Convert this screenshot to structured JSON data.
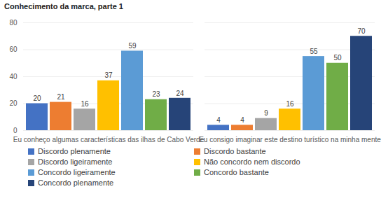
{
  "chart_data": {
    "type": "bar",
    "title": "Conhecimento da marca, parte 1",
    "categories": [
      "Eu conheço algumas características das ilhas de Cabo Verde",
      "Eu consigo imaginar este destino turístico na minha mente"
    ],
    "series": [
      {
        "name": "Discordo plenamente",
        "color": "#4472c4",
        "values": [
          20,
          4
        ]
      },
      {
        "name": "Discordo bastante",
        "color": "#ed7d31",
        "values": [
          21,
          4
        ]
      },
      {
        "name": "Discordo ligeiramente",
        "color": "#a5a5a5",
        "values": [
          16,
          9
        ]
      },
      {
        "name": "Não concordo nem discordo",
        "color": "#ffc000",
        "values": [
          37,
          16
        ]
      },
      {
        "name": "Concordo ligeiramente",
        "color": "#5b9bd5",
        "values": [
          59,
          55
        ]
      },
      {
        "name": "Concordo bastante",
        "color": "#70ad47",
        "values": [
          23,
          50
        ]
      },
      {
        "name": "Concordo plenamente",
        "color": "#264478",
        "values": [
          24,
          70
        ]
      }
    ],
    "ylim": [
      0,
      80
    ],
    "yticks": [
      0,
      20,
      40,
      60,
      80
    ],
    "grid": true,
    "data_labels": true,
    "legend": "bottom"
  }
}
